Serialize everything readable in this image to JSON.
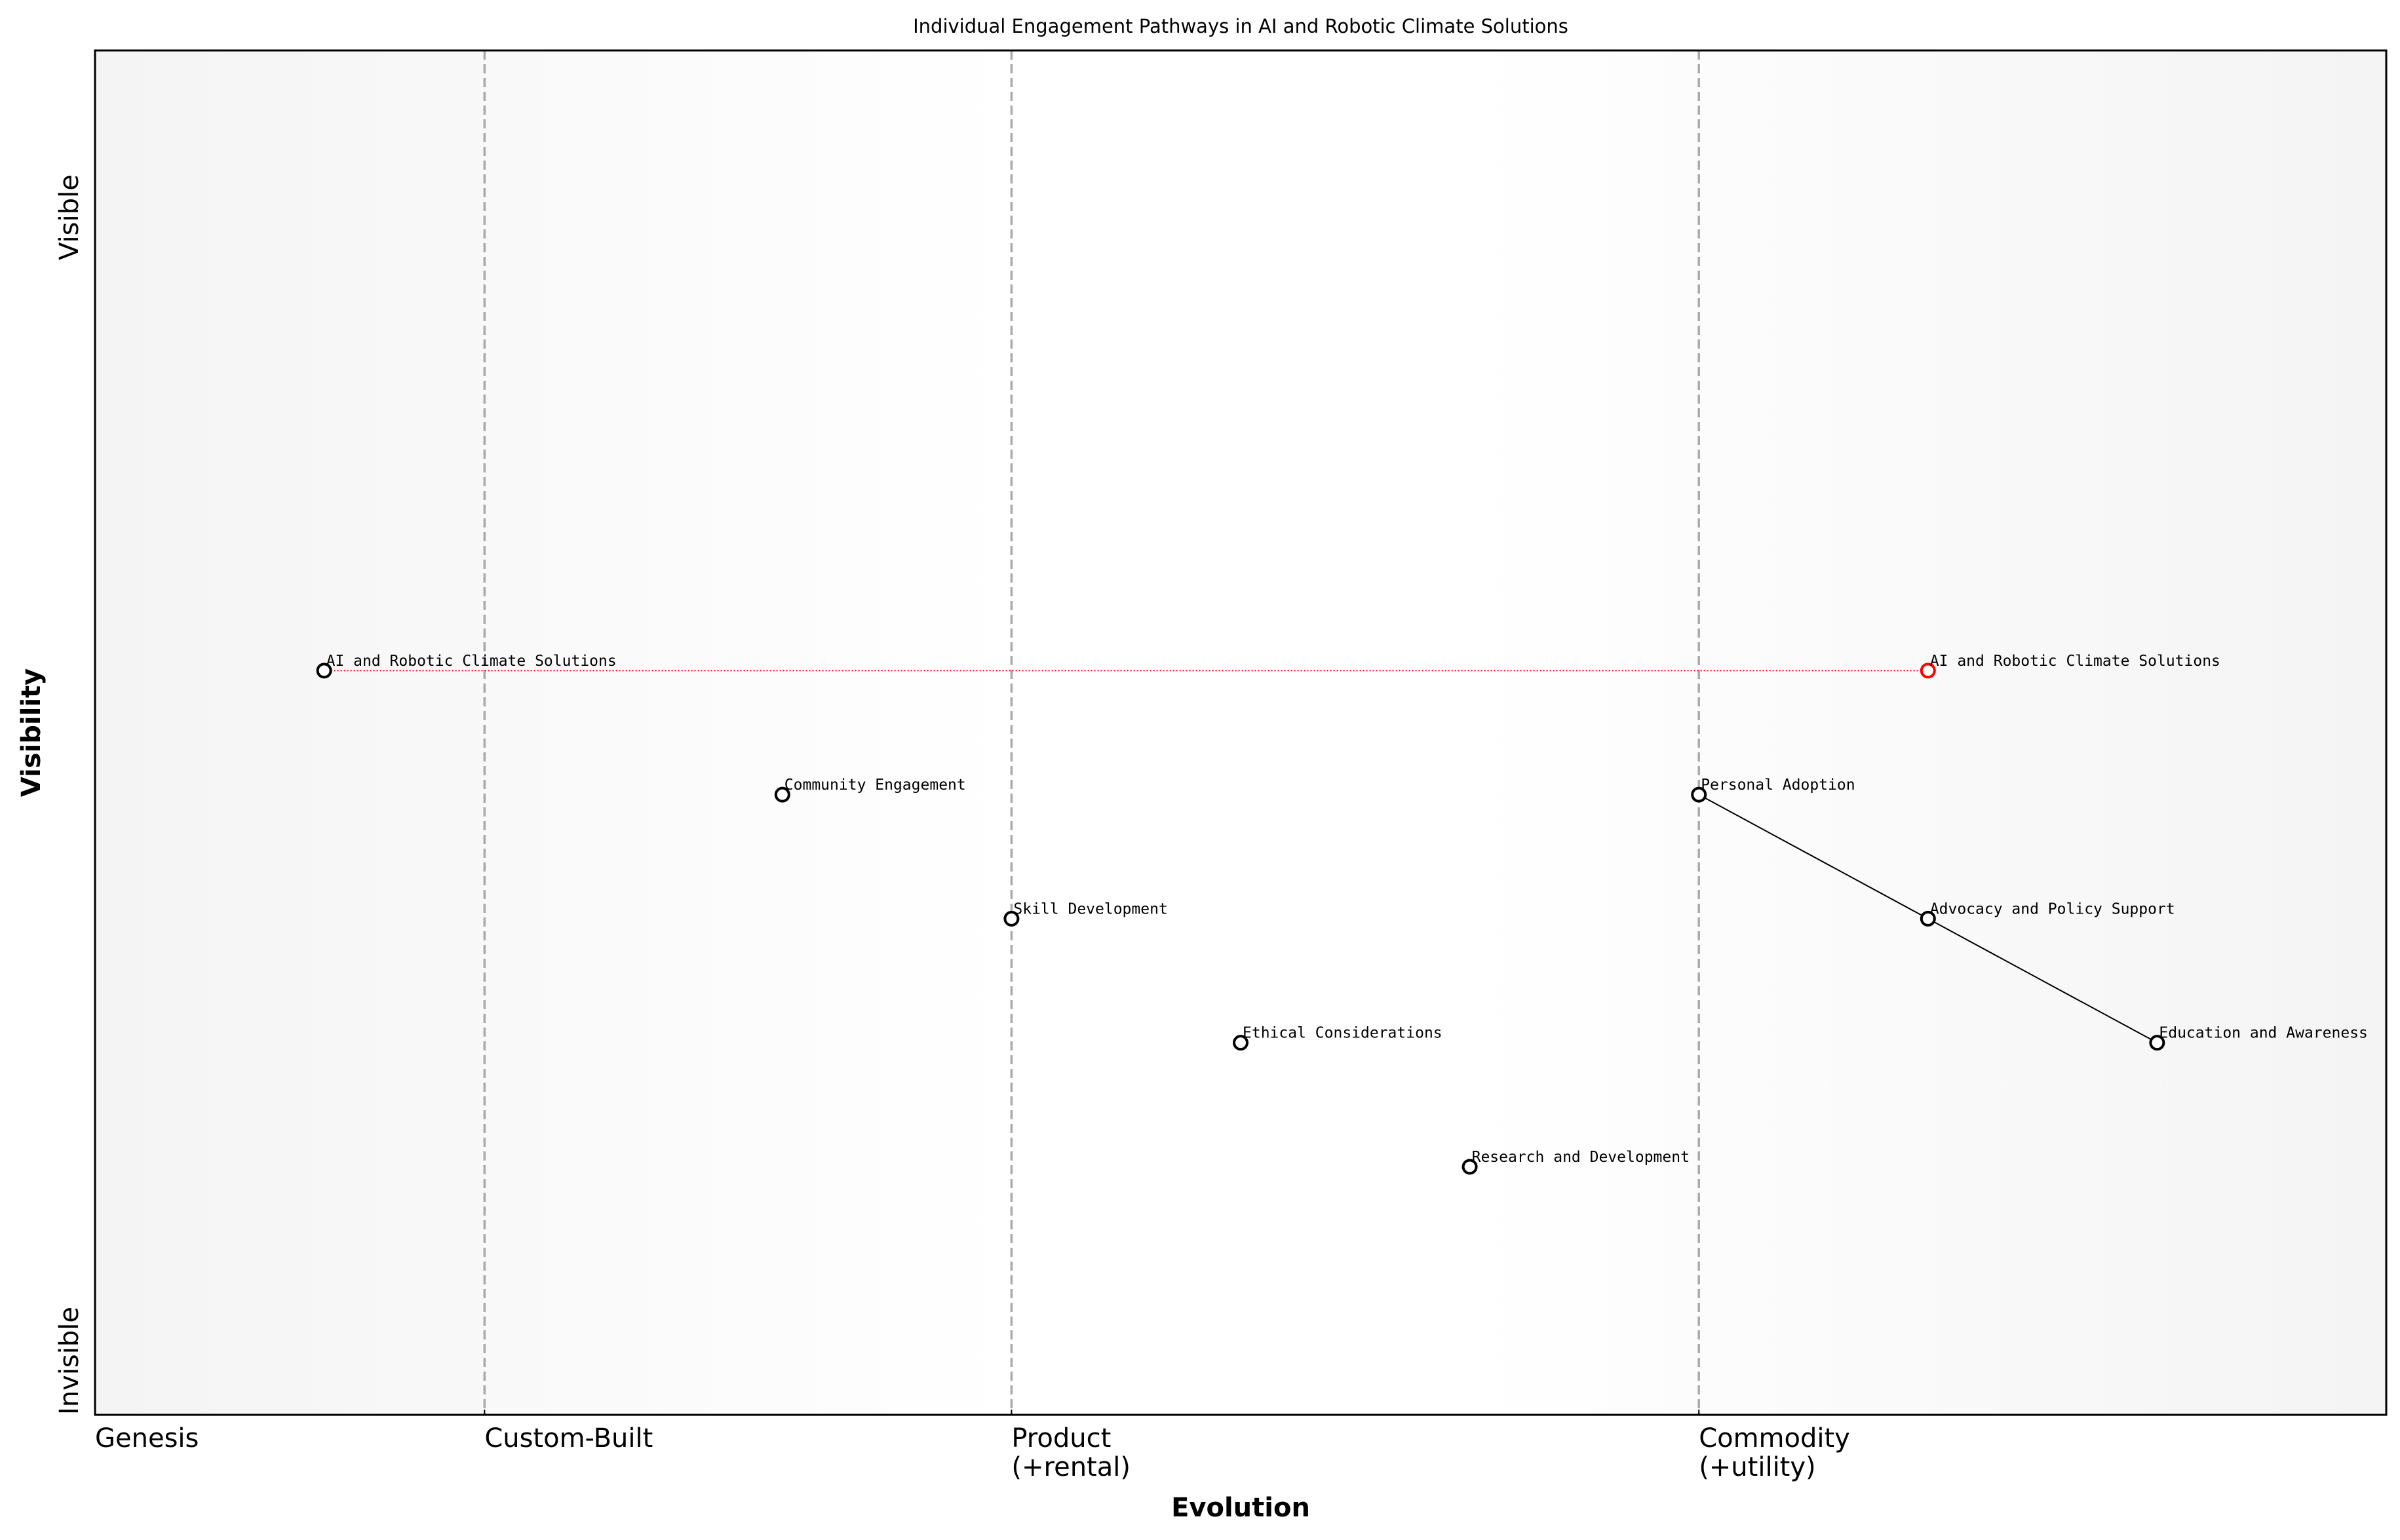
{
  "chart_data": {
    "type": "wardley",
    "title": "Individual Engagement Pathways in AI and Robotic Climate Solutions",
    "x_label": "Evolution",
    "y_label": "Visibility",
    "xlim": [
      0,
      1
    ],
    "ylim": [
      0,
      1.1
    ],
    "xticks": [
      {
        "value": 0,
        "label": "Genesis"
      },
      {
        "value": 0.17,
        "label": "Custom-Built"
      },
      {
        "value": 0.4,
        "label": "Product\n(+rental)"
      },
      {
        "value": 0.7,
        "label": "Commodity\n(+utility)"
      }
    ],
    "yticks": [
      {
        "value": 0,
        "label": "Invisible"
      },
      {
        "value": 1,
        "label": "Visible"
      }
    ],
    "grid": true,
    "color": "#000000",
    "components": [
      {
        "name": "AI and Robotic Climate Solutions",
        "x": 0.1,
        "y": 0.6
      },
      {
        "name": "Community Engagement",
        "x": 0.3,
        "y": 0.5
      },
      {
        "name": "Skill Development",
        "x": 0.4,
        "y": 0.4
      },
      {
        "name": "Ethical Considerations",
        "x": 0.5,
        "y": 0.3
      },
      {
        "name": "Research and Development",
        "x": 0.6,
        "y": 0.2
      },
      {
        "name": "Personal Adoption",
        "x": 0.7,
        "y": 0.5
      },
      {
        "name": "Advocacy and Policy Support",
        "x": 0.8,
        "y": 0.4
      },
      {
        "name": "Education and Awareness",
        "x": 0.9,
        "y": 0.3
      }
    ],
    "links": [
      [
        5,
        6
      ],
      [
        6,
        7
      ]
    ],
    "evolutions": [
      {
        "from": 0,
        "name": "AI and Robotic Climate Solutions",
        "x": 0.8,
        "color": "#ff0000"
      }
    ]
  }
}
